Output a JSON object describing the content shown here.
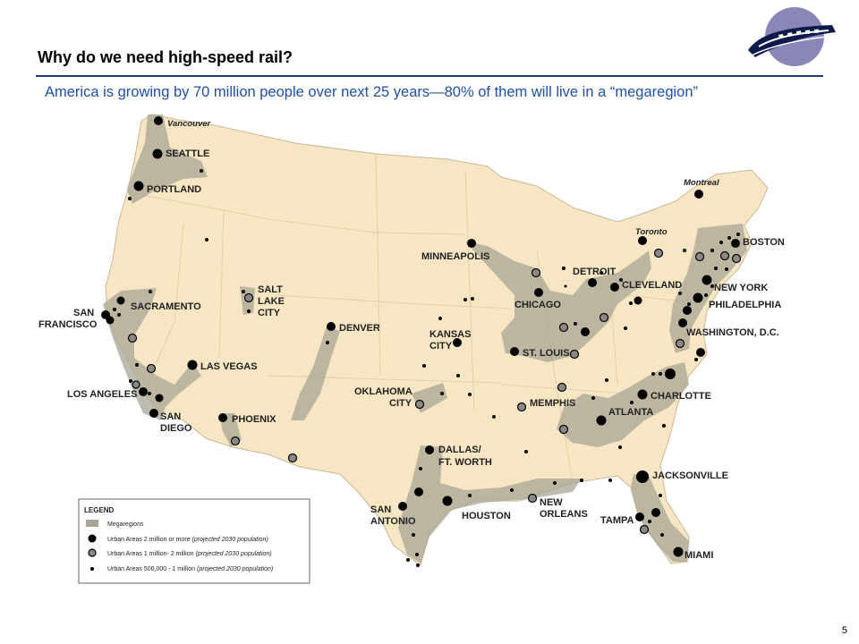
{
  "slide": {
    "title": "Why do we need high-speed rail?",
    "subtitle": "America is growing by 70 million people over next 25 years—80% of them will live in a “megaregion”",
    "page_number": "5"
  },
  "colors": {
    "title_rule": "#1f3b7a",
    "subtitle_text": "#1f4fa8",
    "land": "#f6e6c4",
    "megaregion": "#a8a596",
    "large_dot": "#000000",
    "medium_dot": "#8c8888"
  },
  "logo": {
    "icon": "high-speed-train-icon"
  },
  "map": {
    "cities": [
      {
        "name": "SEATTLE",
        "style": "normal"
      },
      {
        "name": "PORTLAND",
        "style": "normal"
      },
      {
        "name": "SACRAMENTO",
        "style": "normal"
      },
      {
        "name": "SAN",
        "style": "normal"
      },
      {
        "name": "FRANCISCO",
        "style": "normal"
      },
      {
        "name": "SALT",
        "style": "normal"
      },
      {
        "name": "LAKE",
        "style": "normal"
      },
      {
        "name": "CITY",
        "style": "normal"
      },
      {
        "name": "LAS VEGAS",
        "style": "normal"
      },
      {
        "name": "LOS ANGELES",
        "style": "normal"
      },
      {
        "name": "SAN",
        "style": "normal"
      },
      {
        "name": "DIEGO",
        "style": "normal"
      },
      {
        "name": "PHOENIX",
        "style": "normal"
      },
      {
        "name": "DENVER",
        "style": "normal"
      },
      {
        "name": "MINNEAPOLIS",
        "style": "normal"
      },
      {
        "name": "KANSAS",
        "style": "normal"
      },
      {
        "name": "CITY",
        "style": "normal"
      },
      {
        "name": "OKLAHOMA",
        "style": "normal"
      },
      {
        "name": "CITY",
        "style": "normal"
      },
      {
        "name": "DALLAS/",
        "style": "normal"
      },
      {
        "name": "FT. WORTH",
        "style": "normal"
      },
      {
        "name": "SAN",
        "style": "normal"
      },
      {
        "name": "ANTONIO",
        "style": "normal"
      },
      {
        "name": "HOUSTON",
        "style": "normal"
      },
      {
        "name": "NEW",
        "style": "normal"
      },
      {
        "name": "ORLEANS",
        "style": "normal"
      },
      {
        "name": "CHICAGO",
        "style": "normal"
      },
      {
        "name": "ST. LOUIS",
        "style": "normal"
      },
      {
        "name": "MEMPHIS",
        "style": "normal"
      },
      {
        "name": "DETROIT",
        "style": "normal"
      },
      {
        "name": "CLEVELAND",
        "style": "normal"
      },
      {
        "name": "ATLANTA",
        "style": "normal"
      },
      {
        "name": "CHARLOTTE",
        "style": "normal"
      },
      {
        "name": "JACKSONVILLE",
        "style": "normal"
      },
      {
        "name": "TAMPA",
        "style": "normal"
      },
      {
        "name": "MIAMI",
        "style": "normal"
      },
      {
        "name": "WASHINGTON, D.C.",
        "style": "normal"
      },
      {
        "name": "PHILADELPHIA",
        "style": "normal"
      },
      {
        "name": "NEW YORK",
        "style": "normal"
      },
      {
        "name": "BOSTON",
        "style": "normal"
      },
      {
        "name": "Vancouver",
        "style": "italic"
      },
      {
        "name": "Montreal",
        "style": "italic"
      },
      {
        "name": "Toronto",
        "style": "italic"
      }
    ],
    "legend": {
      "title": "LEGEND",
      "items": [
        {
          "label": "Megaregions",
          "symbol": "megaregion-swatch"
        },
        {
          "label": "Urban Areas 2 million or more",
          "note": "(projected 2030 population)",
          "symbol": "large-black-dot"
        },
        {
          "label": "Urban Areas 1 million- 2 million",
          "note": "(projected 2030 population)",
          "symbol": "medium-gray-dot"
        },
        {
          "label": "Urban Areas 500,000 - 1 million",
          "note": "(projected 2030 population)",
          "symbol": "small-black-dot"
        }
      ]
    }
  }
}
